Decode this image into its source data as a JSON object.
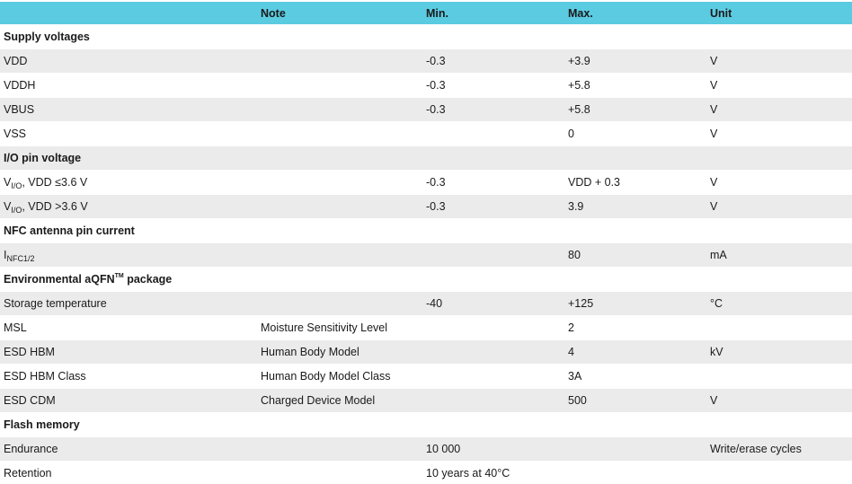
{
  "colors": {
    "header_bg": "#5bcbe1",
    "row_alt_bg": "#ebebeb",
    "row_bg": "#ffffff",
    "text": "#1a1a1a"
  },
  "table": {
    "columns": [
      {
        "key": "param",
        "label": ""
      },
      {
        "key": "note",
        "label": "Note"
      },
      {
        "key": "min",
        "label": "Min."
      },
      {
        "key": "max",
        "label": "Max."
      },
      {
        "key": "unit",
        "label": "Unit"
      }
    ],
    "rows": [
      {
        "type": "section",
        "param": {
          "text": "Supply voltages"
        },
        "note": "",
        "min": "",
        "max": "",
        "unit": ""
      },
      {
        "type": "data",
        "param": {
          "text": "VDD"
        },
        "note": "",
        "min": "-0.3",
        "max": "+3.9",
        "unit": "V"
      },
      {
        "type": "data",
        "param": {
          "text": "VDDH"
        },
        "note": "",
        "min": "-0.3",
        "max": "+5.8",
        "unit": "V"
      },
      {
        "type": "data",
        "param": {
          "text": "VBUS"
        },
        "note": "",
        "min": "-0.3",
        "max": "+5.8",
        "unit": "V"
      },
      {
        "type": "data",
        "param": {
          "text": "VSS"
        },
        "note": "",
        "min": "",
        "max": "0",
        "unit": "V"
      },
      {
        "type": "section",
        "param": {
          "text": "I/O pin voltage"
        },
        "note": "",
        "min": "",
        "max": "",
        "unit": ""
      },
      {
        "type": "data",
        "param": {
          "text": "V",
          "sub": "I/O",
          "post": ", VDD ≤3.6 V"
        },
        "note": "",
        "min": "-0.3",
        "max": "VDD + 0.3",
        "unit": "V"
      },
      {
        "type": "data",
        "param": {
          "text": "V",
          "sub": "I/O",
          "post": ", VDD >3.6 V"
        },
        "note": "",
        "min": "-0.3",
        "max": "3.9",
        "unit": "V"
      },
      {
        "type": "section",
        "param": {
          "text": "NFC antenna pin current"
        },
        "note": "",
        "min": "",
        "max": "",
        "unit": ""
      },
      {
        "type": "data",
        "param": {
          "text": "I",
          "sub": "NFC1/2"
        },
        "note": "",
        "min": "",
        "max": "80",
        "unit": "mA"
      },
      {
        "type": "section",
        "param": {
          "text": "Environmental aQFN",
          "sup": "TM",
          "post": " package"
        },
        "note": "",
        "min": "",
        "max": "",
        "unit": ""
      },
      {
        "type": "data",
        "param": {
          "text": "Storage temperature"
        },
        "note": "",
        "min": "-40",
        "max": "+125",
        "unit": "°C"
      },
      {
        "type": "data",
        "param": {
          "text": "MSL"
        },
        "note": "Moisture Sensitivity Level",
        "min": "",
        "max": "2",
        "unit": ""
      },
      {
        "type": "data",
        "param": {
          "text": "ESD HBM"
        },
        "note": "Human Body Model",
        "min": "",
        "max": "4",
        "unit": "kV"
      },
      {
        "type": "data",
        "param": {
          "text": "ESD HBM Class"
        },
        "note": "Human Body Model Class",
        "min": "",
        "max": "3A",
        "unit": ""
      },
      {
        "type": "data",
        "param": {
          "text": "ESD CDM"
        },
        "note": "Charged Device Model",
        "min": "",
        "max": "500",
        "unit": "V"
      },
      {
        "type": "section",
        "param": {
          "text": "Flash memory"
        },
        "note": "",
        "min": "",
        "max": "",
        "unit": ""
      },
      {
        "type": "data",
        "param": {
          "text": "Endurance"
        },
        "note": "",
        "min": "10 000",
        "max": "",
        "unit": "Write/erase cycles"
      },
      {
        "type": "data",
        "param": {
          "text": "Retention"
        },
        "note": "",
        "min": "10 years at 40°C",
        "max": "",
        "unit": ""
      }
    ]
  }
}
